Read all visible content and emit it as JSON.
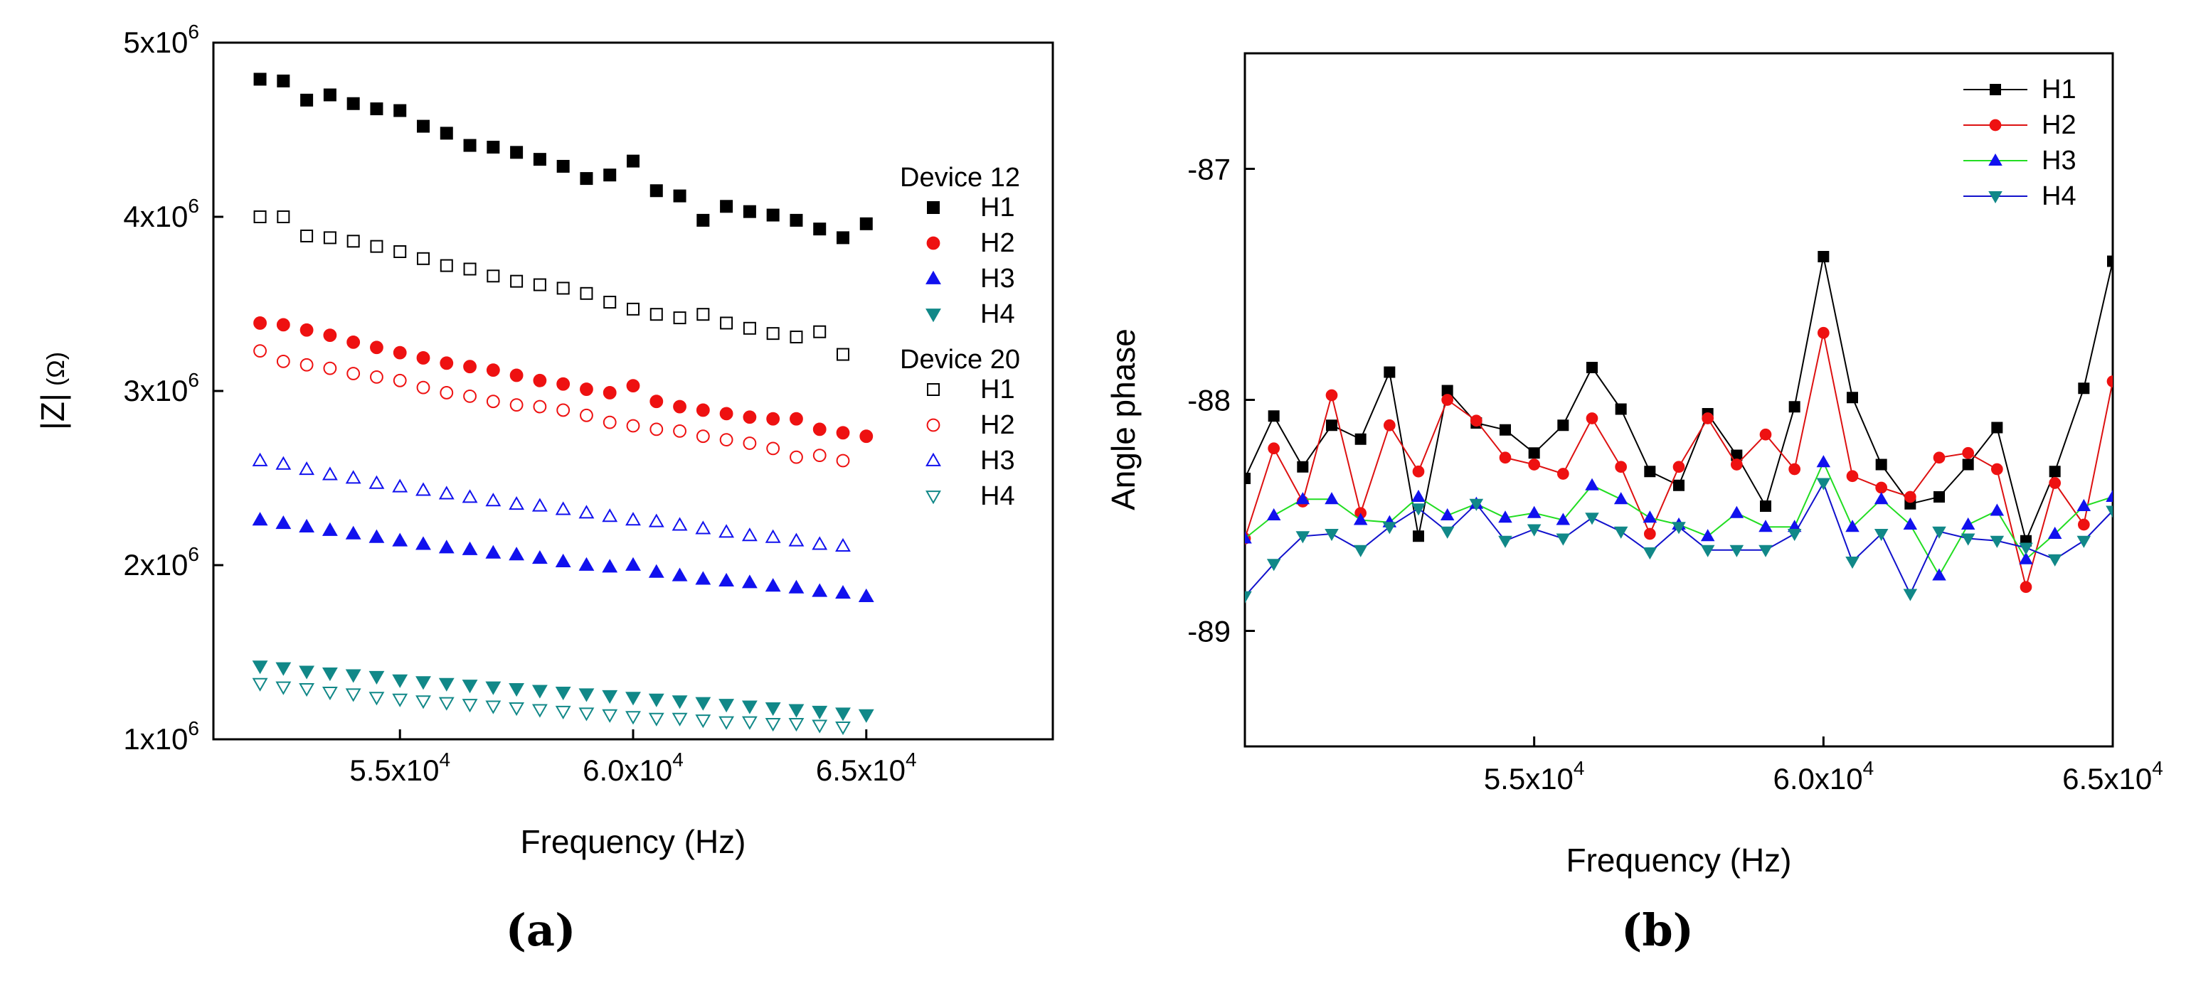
{
  "colors": {
    "H1": "#000000",
    "H2": "#ee1111",
    "H3": "#1111ee",
    "H4": "#118888",
    "H1line": "#000000",
    "H2line": "#dd1111",
    "H3line": "#22dd22",
    "H4line": "#1111cc"
  },
  "captions": {
    "a": "(a)",
    "b": "(b)"
  },
  "chart_data": [
    {
      "type": "scatter",
      "xlabel": "Frequency (Hz)",
      "ylabel_main": "|Z|",
      "ylabel_unit": "(Ω)",
      "xlim": [
        51000,
        69000
      ],
      "ylim": [
        1000000,
        5000000
      ],
      "xticks": [
        {
          "value": 55000,
          "mant": "5.5x10",
          "exp": "4"
        },
        {
          "value": 60000,
          "mant": "6.0x10",
          "exp": "4"
        },
        {
          "value": 65000,
          "mant": "6.5x10",
          "exp": "4"
        }
      ],
      "yticks": [
        {
          "value": 1000000,
          "mant": "1x10",
          "exp": "6"
        },
        {
          "value": 2000000,
          "mant": "2x10",
          "exp": "6"
        },
        {
          "value": 3000000,
          "mant": "3x10",
          "exp": "6"
        },
        {
          "value": 4000000,
          "mant": "4x10",
          "exp": "6"
        },
        {
          "value": 5000000,
          "mant": "5x10",
          "exp": "6"
        }
      ],
      "legend_groups": [
        {
          "title": "Device 12"
        },
        {
          "title": "Device 20"
        }
      ],
      "series": [
        {
          "name": "H1",
          "group": "Device 12",
          "marker": "square",
          "filled": true,
          "color": "#000000",
          "x": [
            52000,
            52500,
            53000,
            53500,
            54000,
            54500,
            55000,
            55500,
            56000,
            56500,
            57000,
            57500,
            58000,
            58500,
            59000,
            59500,
            60000,
            60500,
            61000,
            61500,
            62000,
            62500,
            63000,
            63500,
            64000,
            64500,
            65000
          ],
          "y": [
            4790000,
            4780000,
            4670000,
            4700000,
            4650000,
            4620000,
            4610000,
            4520000,
            4480000,
            4410000,
            4400000,
            4370000,
            4330000,
            4290000,
            4220000,
            4240000,
            4320000,
            4150000,
            4120000,
            3980000,
            4060000,
            4030000,
            4010000,
            3980000,
            3930000,
            3880000,
            3960000
          ]
        },
        {
          "name": "H2",
          "group": "Device 12",
          "marker": "circle",
          "filled": true,
          "color": "#ee1111",
          "x": [
            52000,
            52500,
            53000,
            53500,
            54000,
            54500,
            55000,
            55500,
            56000,
            56500,
            57000,
            57500,
            58000,
            58500,
            59000,
            59500,
            60000,
            60500,
            61000,
            61500,
            62000,
            62500,
            63000,
            63500,
            64000,
            64500,
            65000
          ],
          "y": [
            3390000,
            3380000,
            3350000,
            3320000,
            3280000,
            3250000,
            3220000,
            3190000,
            3160000,
            3140000,
            3120000,
            3090000,
            3060000,
            3040000,
            3010000,
            2990000,
            3030000,
            2940000,
            2910000,
            2890000,
            2870000,
            2850000,
            2840000,
            2840000,
            2780000,
            2760000,
            2740000
          ]
        },
        {
          "name": "H3",
          "group": "Device 12",
          "marker": "triangle-up",
          "filled": true,
          "color": "#1111ee",
          "x": [
            52000,
            52500,
            53000,
            53500,
            54000,
            54500,
            55000,
            55500,
            56000,
            56500,
            57000,
            57500,
            58000,
            58500,
            59000,
            59500,
            60000,
            60500,
            61000,
            61500,
            62000,
            62500,
            63000,
            63500,
            64000,
            64500,
            65000
          ],
          "y": [
            2260000,
            2240000,
            2220000,
            2200000,
            2180000,
            2160000,
            2140000,
            2120000,
            2100000,
            2090000,
            2070000,
            2060000,
            2040000,
            2020000,
            2000000,
            1990000,
            2000000,
            1960000,
            1940000,
            1920000,
            1910000,
            1900000,
            1880000,
            1870000,
            1850000,
            1840000,
            1820000
          ]
        },
        {
          "name": "H4",
          "group": "Device 12",
          "marker": "triangle-down",
          "filled": true,
          "color": "#118888",
          "x": [
            52000,
            52500,
            53000,
            53500,
            54000,
            54500,
            55000,
            55500,
            56000,
            56500,
            57000,
            57500,
            58000,
            58500,
            59000,
            59500,
            60000,
            60500,
            61000,
            61500,
            62000,
            62500,
            63000,
            63500,
            64000,
            64500,
            65000
          ],
          "y": [
            1420000,
            1410000,
            1390000,
            1380000,
            1370000,
            1360000,
            1340000,
            1330000,
            1320000,
            1310000,
            1300000,
            1290000,
            1280000,
            1270000,
            1260000,
            1250000,
            1240000,
            1230000,
            1220000,
            1210000,
            1200000,
            1190000,
            1180000,
            1170000,
            1160000,
            1150000,
            1140000
          ]
        },
        {
          "name": "H1",
          "group": "Device 20",
          "marker": "square",
          "filled": false,
          "color": "#000000",
          "x": [
            52000,
            52500,
            53000,
            53500,
            54000,
            54500,
            55000,
            55500,
            56000,
            56500,
            57000,
            57500,
            58000,
            58500,
            59000,
            59500,
            60000,
            60500,
            61000,
            61500,
            62000,
            62500,
            63000,
            63500,
            64000,
            64500
          ],
          "y": [
            4000000,
            4000000,
            3890000,
            3880000,
            3860000,
            3830000,
            3800000,
            3760000,
            3720000,
            3700000,
            3660000,
            3630000,
            3610000,
            3590000,
            3560000,
            3510000,
            3470000,
            3440000,
            3420000,
            3440000,
            3390000,
            3360000,
            3330000,
            3310000,
            3340000,
            3210000
          ]
        },
        {
          "name": "H2",
          "group": "Device 20",
          "marker": "circle",
          "filled": false,
          "color": "#ee1111",
          "x": [
            52000,
            52500,
            53000,
            53500,
            54000,
            54500,
            55000,
            55500,
            56000,
            56500,
            57000,
            57500,
            58000,
            58500,
            59000,
            59500,
            60000,
            60500,
            61000,
            61500,
            62000,
            62500,
            63000,
            63500,
            64000,
            64500
          ],
          "y": [
            3230000,
            3170000,
            3150000,
            3130000,
            3100000,
            3080000,
            3060000,
            3020000,
            2990000,
            2970000,
            2940000,
            2920000,
            2910000,
            2890000,
            2860000,
            2820000,
            2800000,
            2780000,
            2770000,
            2740000,
            2720000,
            2700000,
            2670000,
            2620000,
            2630000,
            2600000
          ]
        },
        {
          "name": "H3",
          "group": "Device 20",
          "marker": "triangle-up",
          "filled": false,
          "color": "#1111ee",
          "x": [
            52000,
            52500,
            53000,
            53500,
            54000,
            54500,
            55000,
            55500,
            56000,
            56500,
            57000,
            57500,
            58000,
            58500,
            59000,
            59500,
            60000,
            60500,
            61000,
            61500,
            62000,
            62500,
            63000,
            63500,
            64000,
            64500
          ],
          "y": [
            2600000,
            2580000,
            2550000,
            2520000,
            2500000,
            2470000,
            2450000,
            2430000,
            2410000,
            2390000,
            2370000,
            2350000,
            2340000,
            2320000,
            2300000,
            2280000,
            2260000,
            2250000,
            2230000,
            2210000,
            2190000,
            2170000,
            2160000,
            2140000,
            2120000,
            2110000
          ]
        },
        {
          "name": "H4",
          "group": "Device 20",
          "marker": "triangle-down",
          "filled": false,
          "color": "#118888",
          "x": [
            52000,
            52500,
            53000,
            53500,
            54000,
            54500,
            55000,
            55500,
            56000,
            56500,
            57000,
            57500,
            58000,
            58500,
            59000,
            59500,
            60000,
            60500,
            61000,
            61500,
            62000,
            62500,
            63000,
            63500,
            64000,
            64500
          ],
          "y": [
            1320000,
            1300000,
            1290000,
            1270000,
            1260000,
            1240000,
            1230000,
            1220000,
            1210000,
            1200000,
            1190000,
            1180000,
            1170000,
            1160000,
            1150000,
            1140000,
            1130000,
            1120000,
            1120000,
            1110000,
            1100000,
            1100000,
            1090000,
            1090000,
            1080000,
            1070000
          ]
        }
      ]
    },
    {
      "type": "line",
      "xlabel": "Frequency (Hz)",
      "ylabel": "Angle phase",
      "xlim": [
        50000,
        65000
      ],
      "ylim": [
        -89.5,
        -86.5
      ],
      "xticks": [
        {
          "value": 55000,
          "mant": "5.5x10",
          "exp": "4"
        },
        {
          "value": 60000,
          "mant": "6.0x10",
          "exp": "4"
        },
        {
          "value": 65000,
          "mant": "6.5x10",
          "exp": "4"
        }
      ],
      "yticks": [
        {
          "value": -87,
          "label": "-87"
        },
        {
          "value": -88,
          "label": "-88"
        },
        {
          "value": -89,
          "label": "-89"
        }
      ],
      "series": [
        {
          "name": "H1",
          "marker": "square",
          "color": "#000000",
          "lineColor": "#000000",
          "x": [
            50000,
            50500,
            51000,
            51500,
            52000,
            52500,
            53000,
            53500,
            54000,
            54500,
            55000,
            55500,
            56000,
            56500,
            57000,
            57500,
            58000,
            58500,
            59000,
            59500,
            60000,
            60500,
            61000,
            61500,
            62000,
            62500,
            63000,
            63500,
            64000,
            64500,
            65000
          ],
          "y": [
            -88.34,
            -88.07,
            -88.29,
            -88.11,
            -88.17,
            -87.88,
            -88.59,
            -87.96,
            -88.1,
            -88.13,
            -88.23,
            -88.11,
            -87.86,
            -88.04,
            -88.31,
            -88.37,
            -88.06,
            -88.24,
            -88.46,
            -88.03,
            -87.38,
            -87.99,
            -88.28,
            -88.45,
            -88.42,
            -88.28,
            -88.12,
            -88.61,
            -88.31,
            -87.95,
            -87.4
          ]
        },
        {
          "name": "H2",
          "marker": "circle",
          "color": "#ee1111",
          "lineColor": "#dd1111",
          "x": [
            50000,
            50500,
            51000,
            51500,
            52000,
            52500,
            53000,
            53500,
            54000,
            54500,
            55000,
            55500,
            56000,
            56500,
            57000,
            57500,
            58000,
            58500,
            59000,
            59500,
            60000,
            60500,
            61000,
            61500,
            62000,
            62500,
            63000,
            63500,
            64000,
            64500,
            65000
          ],
          "y": [
            -88.6,
            -88.21,
            -88.44,
            -87.98,
            -88.49,
            -88.11,
            -88.31,
            -88.0,
            -88.09,
            -88.25,
            -88.28,
            -88.32,
            -88.08,
            -88.29,
            -88.58,
            -88.29,
            -88.08,
            -88.28,
            -88.15,
            -88.3,
            -87.71,
            -88.33,
            -88.38,
            -88.42,
            -88.25,
            -88.23,
            -88.3,
            -88.81,
            -88.36,
            -88.54,
            -87.92
          ]
        },
        {
          "name": "H3",
          "marker": "triangle-up",
          "color": "#1111ee",
          "lineColor": "#22dd22",
          "x": [
            50000,
            50500,
            51000,
            51500,
            52000,
            52500,
            53000,
            53500,
            54000,
            54500,
            55000,
            55500,
            56000,
            56500,
            57000,
            57500,
            58000,
            58500,
            59000,
            59500,
            60000,
            60500,
            61000,
            61500,
            62000,
            62500,
            63000,
            63500,
            64000,
            64500,
            65000
          ],
          "y": [
            -88.6,
            -88.5,
            -88.43,
            -88.43,
            -88.52,
            -88.53,
            -88.42,
            -88.5,
            -88.45,
            -88.51,
            -88.49,
            -88.52,
            -88.37,
            -88.43,
            -88.51,
            -88.54,
            -88.59,
            -88.49,
            -88.55,
            -88.55,
            -88.27,
            -88.55,
            -88.43,
            -88.54,
            -88.76,
            -88.54,
            -88.48,
            -88.69,
            -88.58,
            -88.46,
            -88.42
          ]
        },
        {
          "name": "H4",
          "marker": "triangle-down",
          "color": "#118888",
          "lineColor": "#1111cc",
          "x": [
            50000,
            50500,
            51000,
            51500,
            52000,
            52500,
            53000,
            53500,
            54000,
            54500,
            55000,
            55500,
            56000,
            56500,
            57000,
            57500,
            58000,
            58500,
            59000,
            59500,
            60000,
            60500,
            61000,
            61500,
            62000,
            62500,
            63000,
            63500,
            64000,
            64500,
            65000
          ],
          "y": [
            -88.85,
            -88.71,
            -88.59,
            -88.58,
            -88.65,
            -88.55,
            -88.47,
            -88.57,
            -88.45,
            -88.61,
            -88.56,
            -88.6,
            -88.51,
            -88.57,
            -88.66,
            -88.55,
            -88.65,
            -88.65,
            -88.65,
            -88.58,
            -88.36,
            -88.7,
            -88.58,
            -88.84,
            -88.57,
            -88.6,
            -88.61,
            -88.64,
            -88.69,
            -88.61,
            -88.48
          ]
        }
      ]
    }
  ]
}
